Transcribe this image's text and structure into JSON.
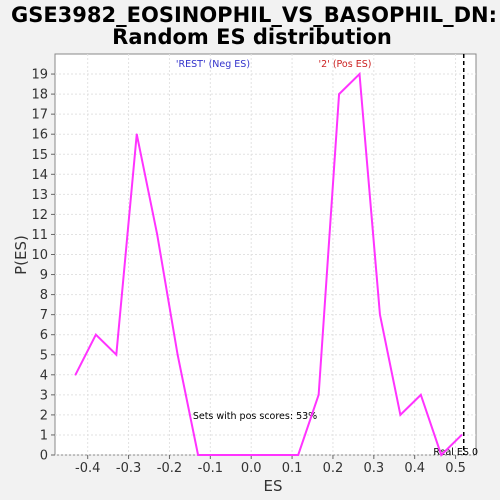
{
  "chart_data": {
    "type": "line",
    "title_line1": "GSE3982_EOSINOPHIL_VS_BASOPHIL_DN:",
    "title_line2": "Random ES distribution",
    "xlabel": "ES",
    "ylabel": "P(ES)",
    "xlim": [
      -0.48,
      0.55
    ],
    "ylim": [
      0,
      20
    ],
    "xticks": [
      {
        "value": -0.4,
        "label": "-0.4"
      },
      {
        "value": -0.3,
        "label": "-0.3"
      },
      {
        "value": -0.2,
        "label": "-0.2"
      },
      {
        "value": -0.1,
        "label": "-0.1"
      },
      {
        "value": 0.0,
        "label": "0.0"
      },
      {
        "value": 0.1,
        "label": "0.1"
      },
      {
        "value": 0.2,
        "label": "0.2"
      },
      {
        "value": 0.3,
        "label": "0.3"
      },
      {
        "value": 0.4,
        "label": "0.4"
      },
      {
        "value": 0.5,
        "label": "0.5"
      }
    ],
    "yticks": [
      {
        "value": 0,
        "label": "0"
      },
      {
        "value": 1,
        "label": "1"
      },
      {
        "value": 2,
        "label": "2"
      },
      {
        "value": 3,
        "label": "3"
      },
      {
        "value": 4,
        "label": "4"
      },
      {
        "value": 5,
        "label": "5"
      },
      {
        "value": 6,
        "label": "6"
      },
      {
        "value": 7,
        "label": "7"
      },
      {
        "value": 8,
        "label": "8"
      },
      {
        "value": 9,
        "label": "9"
      },
      {
        "value": 10,
        "label": "10"
      },
      {
        "value": 11,
        "label": "11"
      },
      {
        "value": 12,
        "label": "12"
      },
      {
        "value": 13,
        "label": "13"
      },
      {
        "value": 14,
        "label": "14"
      },
      {
        "value": 15,
        "label": "15"
      },
      {
        "value": 16,
        "label": "16"
      },
      {
        "value": 17,
        "label": "17"
      },
      {
        "value": 18,
        "label": "18"
      },
      {
        "value": 19,
        "label": "19"
      }
    ],
    "grid": true,
    "line_color": "#ff33ff",
    "series": [
      {
        "x": [
          -0.43,
          -0.38,
          -0.33,
          -0.28,
          -0.23,
          -0.18,
          -0.13,
          -0.08,
          -0.03,
          0.02,
          0.07,
          0.115,
          0.165,
          0.215,
          0.265,
          0.315,
          0.365,
          0.415,
          0.465,
          0.515
        ],
        "y": [
          4,
          6,
          5,
          16,
          11,
          5,
          0,
          0,
          0,
          0,
          0,
          0,
          3,
          18,
          19,
          7,
          2,
          3,
          0,
          1
        ]
      }
    ],
    "annotations": {
      "neg_label": "'REST' (Neg ES)",
      "neg_color": "#3333cc",
      "pos_label": "'2' (Pos ES)",
      "pos_color": "#cc2222",
      "pos_scores_text": "Sets with pos scores: 53%",
      "real_es_label": "Real ES 0",
      "real_es_value": 0.52
    }
  }
}
